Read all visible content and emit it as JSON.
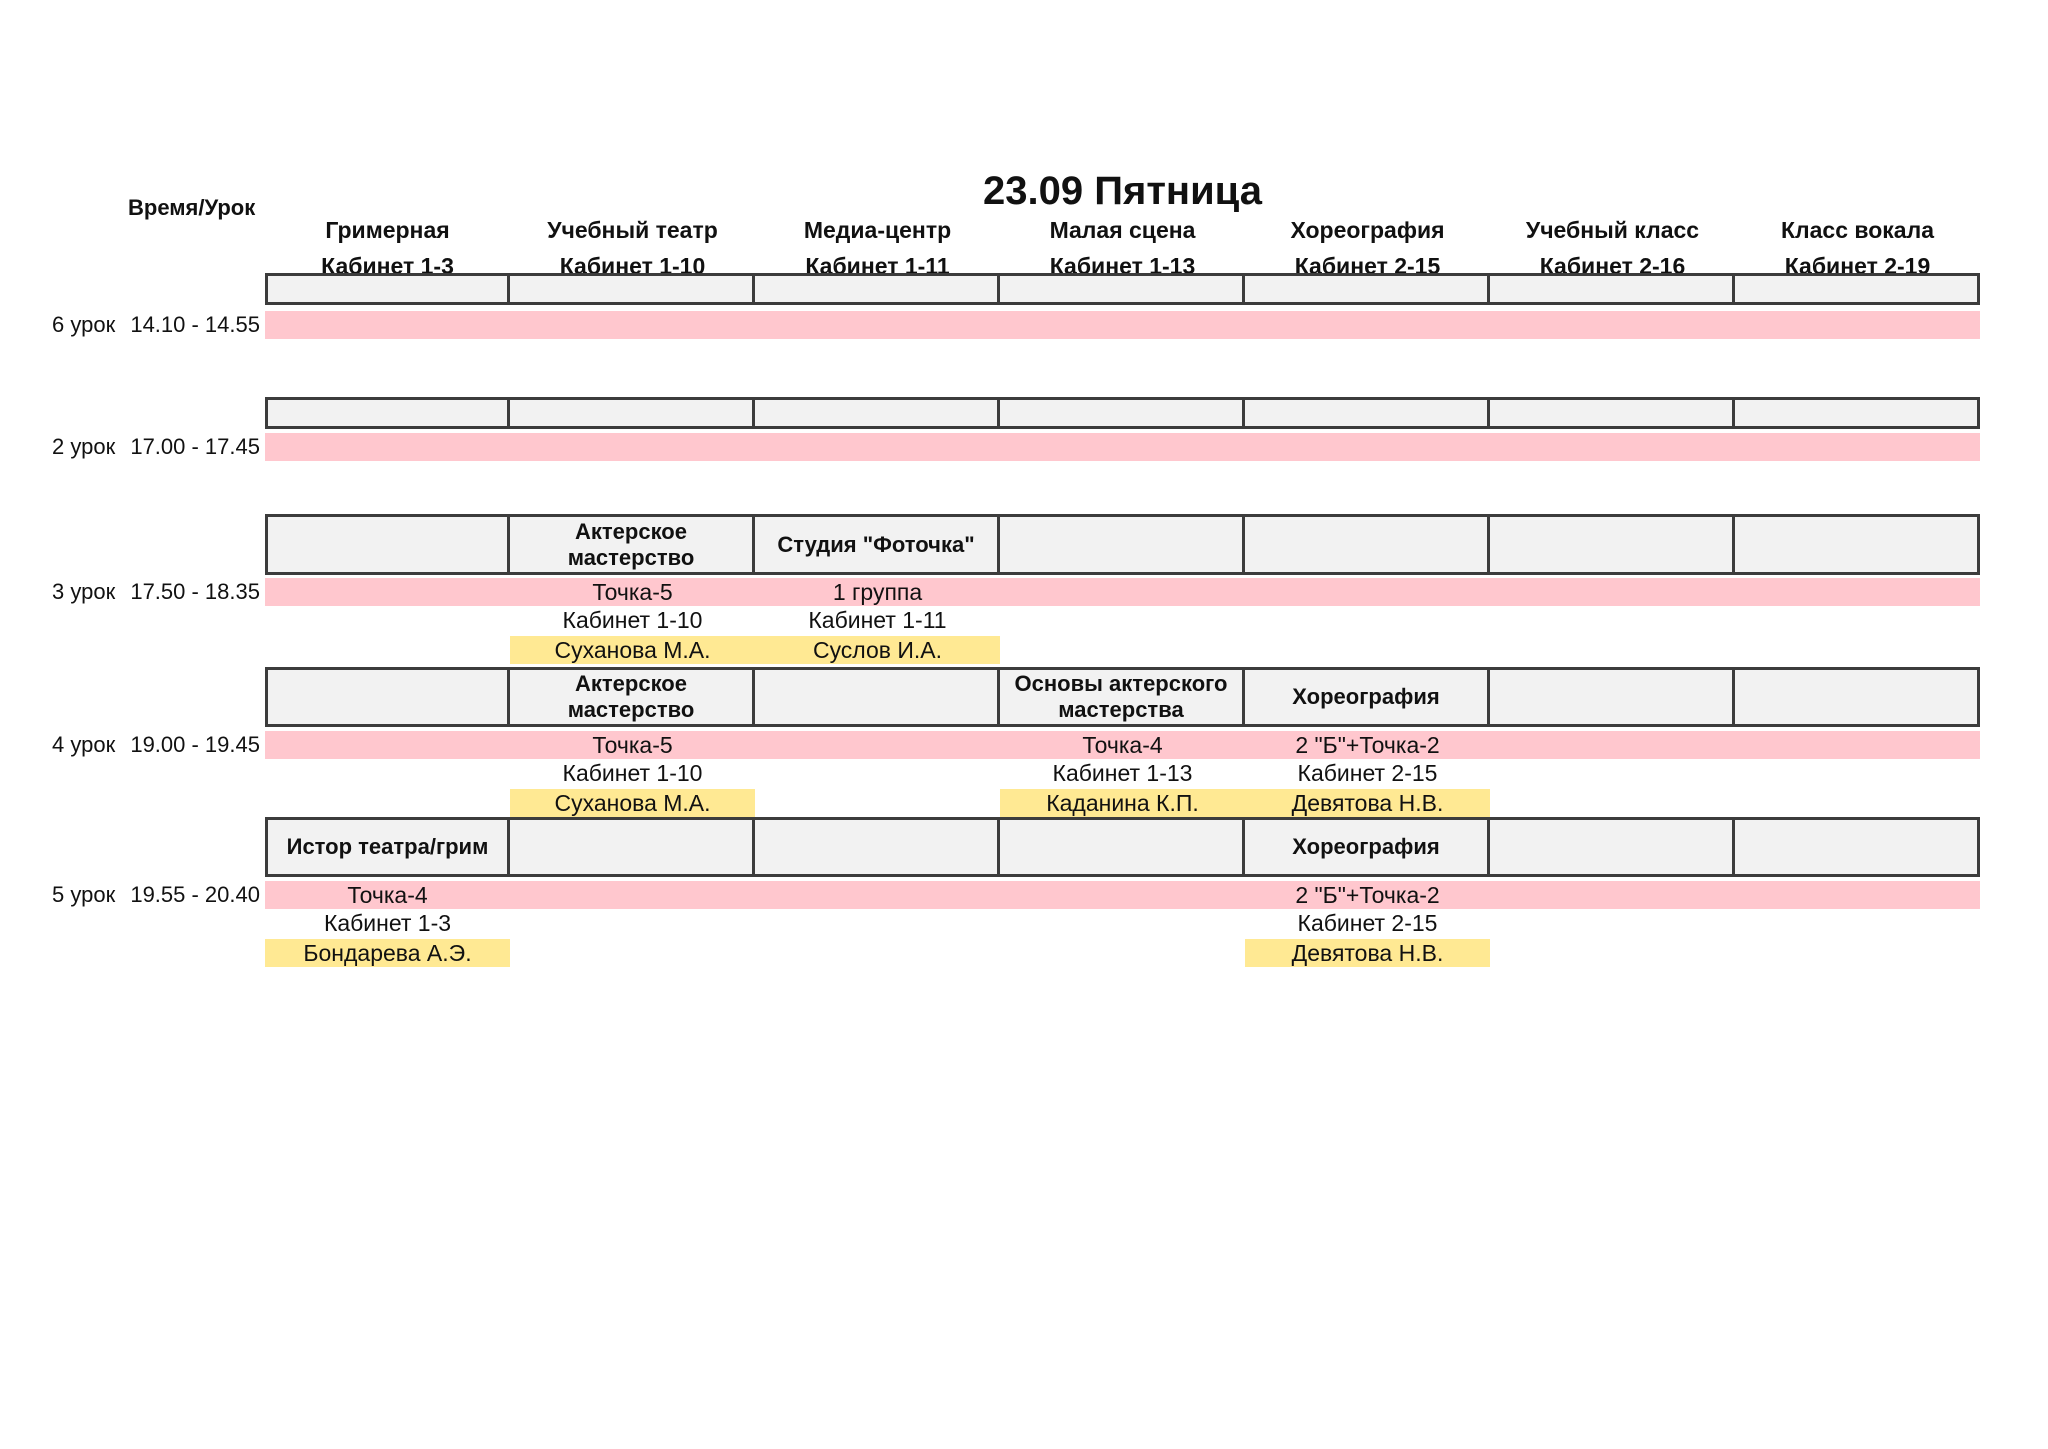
{
  "title": "23.09 Пятница",
  "corner_label": "Время/Урок",
  "columns": [
    {
      "name": "Гримерная",
      "room": "Кабинет 1-3"
    },
    {
      "name": "Учебный театр",
      "room": "Кабинет 1-10"
    },
    {
      "name": "Медиа-центр",
      "room": "Кабинет 1-11"
    },
    {
      "name": "Малая сцена",
      "room": "Кабинет 1-13"
    },
    {
      "name": "Хореография",
      "room": "Кабинет 2-15"
    },
    {
      "name": "Учебный класс",
      "room": "Кабинет 2-16"
    },
    {
      "name": "Класс вокала",
      "room": "Кабинет 2-19"
    }
  ],
  "lessons": [
    {
      "label": "6 урок",
      "time": "14.10 - 14.55",
      "entries": [
        null,
        null,
        null,
        null,
        null,
        null,
        null
      ]
    },
    {
      "label": "2 урок",
      "time": "17.00 - 17.45",
      "entries": [
        null,
        null,
        null,
        null,
        null,
        null,
        null
      ]
    },
    {
      "label": "3 урок",
      "time": "17.50 - 18.35",
      "entries": [
        null,
        {
          "subject": "Актерское мастерство",
          "group": "Точка-5",
          "room": "Кабинет 1-10",
          "teacher": "Суханова М.А."
        },
        {
          "subject": "Студия \"Фоточка\"",
          "group": "1 группа",
          "room": "Кабинет 1-11",
          "teacher": "Суслов И.А."
        },
        null,
        null,
        null,
        null
      ]
    },
    {
      "label": "4 урок",
      "time": "19.00 - 19.45",
      "entries": [
        null,
        {
          "subject": "Актерское мастерство",
          "group": "Точка-5",
          "room": "Кабинет 1-10",
          "teacher": "Суханова М.А."
        },
        null,
        {
          "subject": "Основы актерского мастерства",
          "group": "Точка-4",
          "room": "Кабинет 1-13",
          "teacher": "Каданина К.П."
        },
        {
          "subject": "Хореография",
          "group": "2 \"Б\"+Точка-2",
          "room": "Кабинет 2-15",
          "teacher": "Девятова Н.В."
        },
        null,
        null
      ]
    },
    {
      "label": "5 урок",
      "time": "19.55 - 20.40",
      "entries": [
        {
          "subject": "Истор театра/грим",
          "group": "Точка-4",
          "room": "Кабинет 1-3",
          "teacher": "Бондарева А.Э."
        },
        null,
        null,
        null,
        {
          "subject": "Хореография",
          "group": "2 \"Б\"+Точка-2",
          "room": "Кабинет 2-15",
          "teacher": "Девятова Н.В."
        },
        null,
        null
      ]
    }
  ],
  "colors": {
    "pink_group_row": "#FFC7CE",
    "yellow_teacher_cell": "#FFE993",
    "gray_subject_cell": "#F2F2F2",
    "cell_border": "#3C3C3C"
  }
}
